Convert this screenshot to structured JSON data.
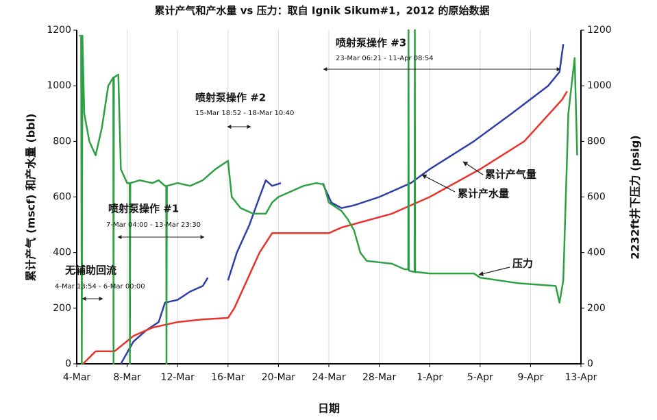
{
  "chart_data": {
    "type": "line",
    "title": "累计产气和产水量 vs 压力：取自 Ignik Sikum#1，2012 的原始数据",
    "x_label": "日期",
    "y_label": "累计产气 (mscf) 和产水量 (bbl)",
    "y2_label": "2232ft井下压力 (psig)",
    "xlim": [
      0,
      40
    ],
    "xticks": [
      {
        "value": 0,
        "label": "4-Mar"
      },
      {
        "value": 4,
        "label": "8-Mar"
      },
      {
        "value": 8,
        "label": "12-Mar"
      },
      {
        "value": 12,
        "label": "16-Mar"
      },
      {
        "value": 16,
        "label": "20-Mar"
      },
      {
        "value": 20,
        "label": "24-Mar"
      },
      {
        "value": 24,
        "label": "28-Mar"
      },
      {
        "value": 28,
        "label": "1-Apr"
      },
      {
        "value": 32,
        "label": "5-Apr"
      },
      {
        "value": 36,
        "label": "9-Apr"
      },
      {
        "value": 40,
        "label": "13-Apr"
      }
    ],
    "ylim": [
      0,
      1200
    ],
    "yticks": [
      0,
      200,
      400,
      600,
      800,
      1000,
      1200
    ],
    "y2lim": [
      0,
      1200
    ],
    "y2ticks": [
      0,
      200,
      400,
      600,
      800,
      1000,
      1200
    ],
    "grid": "x",
    "series": [
      {
        "name": "累计产气量",
        "color": "#2e3fa8",
        "x": [
          3.5,
          4.5,
          5.5,
          6.5,
          7,
          8,
          9,
          10,
          10.4,
          null,
          12,
          12.7,
          13.7,
          14.5,
          15,
          15.5,
          16.2,
          null,
          19.5,
          20.2,
          21,
          22,
          24,
          26.5,
          28,
          31.5,
          34.5,
          37.4,
          38.3,
          38.6
        ],
        "values": [
          0,
          80,
          120,
          150,
          220,
          230,
          260,
          280,
          310,
          null,
          300,
          400,
          500,
          600,
          660,
          640,
          650,
          null,
          650,
          580,
          560,
          570,
          600,
          650,
          700,
          800,
          900,
          1000,
          1050,
          1150
        ]
      },
      {
        "name": "累计产水量",
        "color": "#e8322a",
        "x": [
          0.5,
          1.5,
          3,
          4.5,
          6,
          8,
          10,
          12,
          12.5,
          13.5,
          14.5,
          15.5,
          20,
          21,
          25,
          28,
          32,
          35.5,
          38.5,
          38.9
        ],
        "values": [
          0,
          45,
          45,
          100,
          130,
          150,
          160,
          165,
          200,
          300,
          400,
          470,
          470,
          490,
          540,
          600,
          700,
          800,
          950,
          980
        ]
      },
      {
        "name": "压力",
        "color": "#2ea043",
        "axis": "y2",
        "x": [
          0.2,
          0.35,
          0.4,
          0.45,
          0.6,
          1,
          1.5,
          2,
          2.5,
          2.9,
          2.92,
          2.95,
          3.3,
          3.5,
          4,
          4.2,
          4.22,
          4.25,
          5,
          6,
          6.5,
          7,
          7.1,
          7.12,
          7.15,
          8,
          9,
          10,
          11,
          12,
          12.3,
          13,
          14,
          15,
          15.5,
          16,
          17,
          18,
          19,
          19.6,
          20,
          21,
          21.5,
          22,
          22.5,
          23,
          25,
          26,
          26.3,
          26.32,
          26.35,
          26.8,
          26.82,
          26.85,
          27,
          28,
          31.5,
          32,
          35,
          38,
          38.3,
          38.6,
          39,
          39.5,
          39.7
        ],
        "values": [
          1180,
          1180,
          0,
          1180,
          900,
          800,
          750,
          850,
          1000,
          1030,
          0,
          1030,
          1040,
          700,
          650,
          650,
          0,
          650,
          660,
          650,
          660,
          640,
          640,
          0,
          640,
          650,
          640,
          660,
          700,
          730,
          600,
          560,
          540,
          540,
          580,
          600,
          620,
          640,
          650,
          645,
          580,
          550,
          520,
          480,
          400,
          370,
          360,
          340,
          340,
          1200,
          335,
          330,
          1200,
          330,
          330,
          325,
          325,
          310,
          290,
          280,
          220,
          300,
          900,
          1100,
          750
        ]
      }
    ],
    "annotations": [
      {
        "label": "无辅助回流",
        "range": "4-Mar 13:54 - 6-Mar 00:00"
      },
      {
        "label": "喷射泵操作 #1",
        "range": "7-Mar 04:00 - 13-Mar 23:30"
      },
      {
        "label": "喷射泵操作 #2",
        "range": "15-Mar 18:52 - 18-Mar 10:40"
      },
      {
        "label": "喷射泵操作 #3",
        "range": "23-Mar 06:21 - 11-Apr 08:54"
      }
    ]
  }
}
